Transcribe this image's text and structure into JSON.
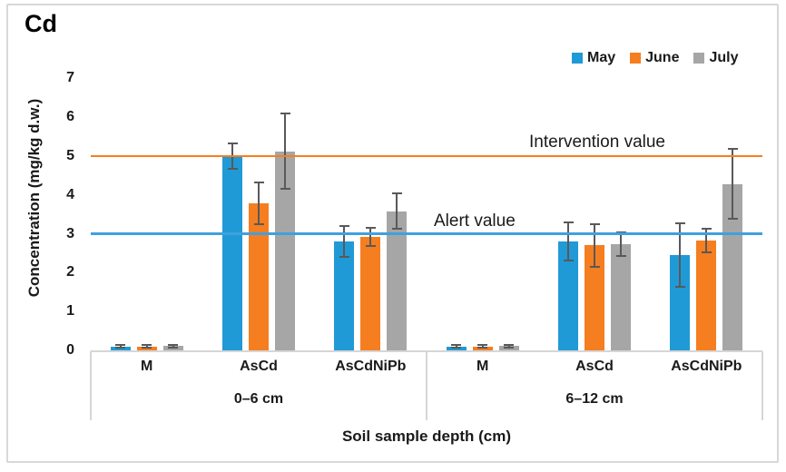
{
  "figure": {
    "title": "Cd"
  },
  "legend": {
    "items": [
      {
        "label": "May"
      },
      {
        "label": "June"
      },
      {
        "label": "July"
      }
    ]
  },
  "axes": {
    "y_title": "Concentration (mg/kg d.w.)",
    "x_title": "Soil sample depth (cm)",
    "y_ticks": [
      "0",
      "1",
      "2",
      "3",
      "4",
      "5",
      "6",
      "7"
    ]
  },
  "reference_lines": {
    "intervention": {
      "label": "Intervention value",
      "value": 5,
      "color": "#F57E20"
    },
    "alert": {
      "label": "Alert value",
      "value": 3,
      "color": "#41A0DC"
    }
  },
  "chart_data": {
    "type": "bar",
    "title": "Cd",
    "ylabel": "Concentration (mg/kg d.w.)",
    "xlabel": "Soil sample depth (cm)",
    "ylim": [
      0,
      7
    ],
    "grid": false,
    "legend_position": "top-right",
    "group_labels": [
      "0–6 cm",
      "6–12 cm"
    ],
    "categories": [
      "M",
      "AsCd",
      "AsCdNiPb",
      "M",
      "AsCd",
      "AsCdNiPb"
    ],
    "series": [
      {
        "name": "May",
        "color": "#1F9AD7",
        "values": [
          0.1,
          5.0,
          2.8,
          0.1,
          2.8,
          2.45
        ],
        "error_bars": [
          0.03,
          0.33,
          0.39,
          0.03,
          0.49,
          0.82
        ]
      },
      {
        "name": "June",
        "color": "#F57E20",
        "values": [
          0.1,
          3.78,
          2.92,
          0.1,
          2.7,
          2.83
        ],
        "error_bars": [
          0.03,
          0.54,
          0.23,
          0.03,
          0.55,
          0.31
        ]
      },
      {
        "name": "July",
        "color": "#A6A6A6",
        "values": [
          0.11,
          5.12,
          3.58,
          0.11,
          2.73,
          4.28
        ],
        "error_bars": [
          0.03,
          0.97,
          0.46,
          0.03,
          0.31,
          0.9
        ]
      }
    ],
    "reference_lines": [
      {
        "label": "Intervention value",
        "value": 5
      },
      {
        "label": "Alert value",
        "value": 3
      }
    ]
  }
}
